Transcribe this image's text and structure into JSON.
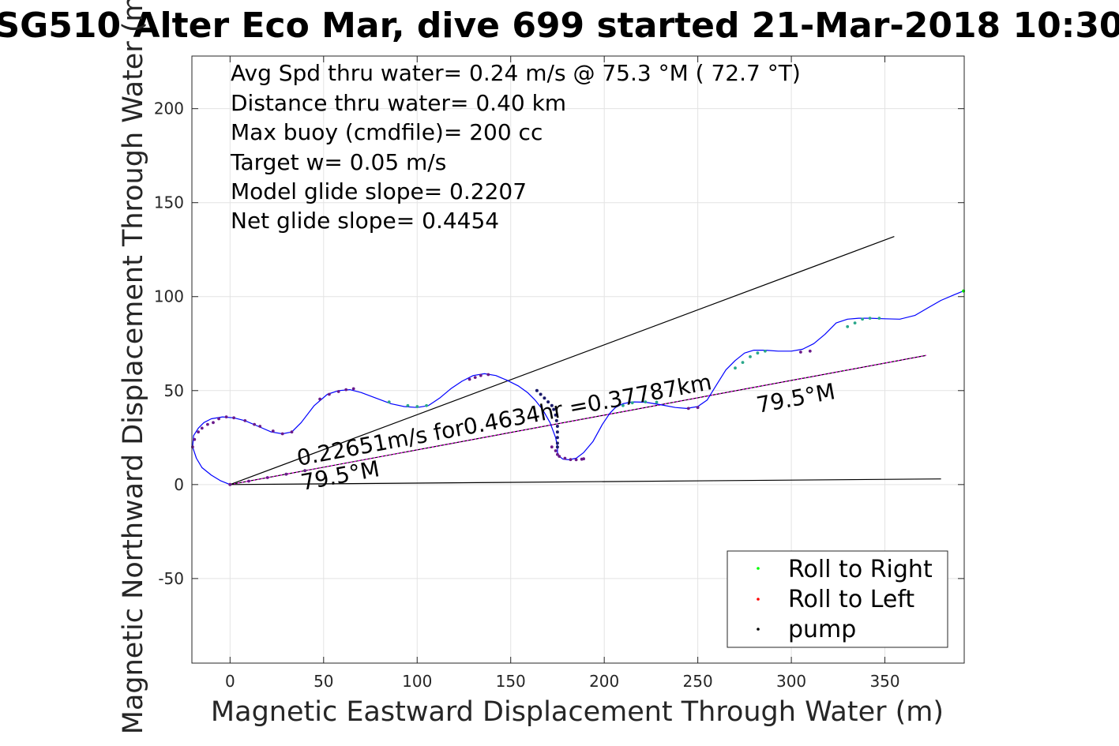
{
  "chart_data": {
    "type": "line",
    "title": "SG510 Alter Eco Mar, dive 699 started 21-Mar-2018 10:30",
    "xlabel": "Magnetic Eastward Displacement Through Water (m)",
    "ylabel": "Magnetic Northward Displacement Through Water (m)",
    "xlim": [
      -20.4,
      392.4
    ],
    "ylim": [
      -95,
      228
    ],
    "xticks": [
      0,
      50,
      100,
      150,
      200,
      250,
      300,
      350
    ],
    "yticks": [
      -50,
      0,
      50,
      100,
      150,
      200
    ],
    "grid": true,
    "legend_position": "bottom-right",
    "stats_text": [
      "Avg Spd thru water=  0.24 m/s @  75.3 °M ( 72.7 °T)",
      "Distance thru water=  0.40 km",
      "Max buoy (cmdfile)= 200 cc",
      "Target w= 0.05 m/s",
      "Model glide slope= 0.2207",
      "Net glide slope= 0.4454"
    ],
    "annotations": {
      "speed": "0.22651m/s for0.4634hr =0.37787km",
      "heading_start": "79.5°M",
      "heading_end": "79.5°M"
    },
    "legend": [
      {
        "label": "Roll to Right",
        "color": "#00ff00"
      },
      {
        "label": "Roll to Left",
        "color": "#ff0000"
      },
      {
        "label": "pump",
        "color": "#000000"
      }
    ],
    "colors": {
      "track": "#0000ff",
      "glide_line": "#ff00ff",
      "reference_lines": "#000000",
      "mixed_marker": "#6a1a8a",
      "right_marker": "#2aa78a",
      "pump_marker": "#1a1a6a"
    },
    "series": [
      {
        "kind": "track",
        "x": [
          0,
          -5,
          -10,
          -15,
          -18,
          -20,
          -19.5,
          -17,
          -14,
          -10,
          -4,
          2,
          8,
          15,
          22,
          28,
          33,
          38,
          45,
          52,
          58,
          64,
          70,
          78,
          86,
          93,
          100,
          106,
          112,
          118,
          124,
          130,
          136,
          142,
          148,
          154,
          159,
          163,
          167,
          171,
          174,
          175,
          175,
          176,
          178,
          181,
          185,
          189,
          194,
          199,
          203,
          206,
          210,
          215,
          222,
          230,
          238,
          244,
          250,
          255,
          260,
          265,
          270,
          275,
          280,
          286,
          293,
          300,
          306,
          312,
          318,
          324,
          330,
          336,
          342,
          350,
          358,
          366,
          373,
          380,
          387,
          392
        ],
        "y": [
          0,
          2,
          5,
          9,
          14,
          20,
          26,
          30,
          33,
          35,
          36,
          35.5,
          34,
          31,
          28,
          27,
          28,
          33,
          42,
          48,
          50,
          50.5,
          49,
          46,
          43,
          41.5,
          41,
          42,
          46,
          51,
          55,
          58,
          59,
          58,
          55.5,
          52.5,
          49,
          45,
          40,
          33,
          25,
          20,
          17,
          15,
          13.5,
          13.2,
          14,
          17,
          23,
          32,
          38,
          41,
          43,
          44,
          43.8,
          42.5,
          41,
          40.5,
          41.5,
          45,
          53,
          61,
          66,
          70,
          71.5,
          71.5,
          71,
          71,
          72,
          75,
          80,
          86,
          88,
          88.5,
          88.5,
          88.2,
          88,
          90,
          94,
          98,
          101,
          103
        ]
      },
      {
        "kind": "glide_line",
        "x": [
          0,
          372
        ],
        "y": [
          0,
          68.7
        ]
      },
      {
        "kind": "reference_upper",
        "x": [
          0,
          355
        ],
        "y": [
          0,
          132
        ]
      },
      {
        "kind": "reference_lower",
        "x": [
          0,
          380
        ],
        "y": [
          0,
          3
        ]
      },
      {
        "kind": "markers_left",
        "x": [
          -20,
          -19,
          -17,
          -15,
          -12,
          -9,
          -6,
          -2,
          2,
          8,
          13,
          16,
          23,
          28,
          33,
          48,
          53,
          58,
          62,
          66,
          128,
          131,
          134,
          138,
          172,
          174,
          175,
          176,
          179,
          182,
          185,
          188,
          189,
          245,
          250,
          305,
          310,
          10,
          20,
          30,
          40
        ],
        "y": [
          20,
          24,
          28,
          30,
          32,
          33,
          35,
          36,
          35.5,
          34,
          32,
          31,
          28.5,
          27,
          28,
          45.5,
          48,
          49.5,
          50.5,
          51,
          56,
          57,
          58,
          58.5,
          20,
          18,
          16,
          15,
          14,
          13.3,
          13.2,
          13.5,
          13.7,
          40.5,
          41,
          70.5,
          71,
          1.8,
          3.7,
          5.5,
          7.4
        ]
      },
      {
        "kind": "markers_right",
        "x": [
          85,
          95,
          100,
          105,
          210,
          215,
          222,
          228,
          270,
          274,
          278,
          282,
          286,
          330,
          334,
          338,
          342,
          347
        ],
        "y": [
          44,
          42,
          41.5,
          42,
          42,
          43.5,
          44,
          43.8,
          62,
          65,
          68,
          70,
          71,
          84,
          86,
          88,
          88.5,
          88.5
        ]
      },
      {
        "kind": "markers_pump",
        "x": [
          164,
          166,
          168,
          170,
          172,
          173,
          174,
          174.5,
          175,
          175,
          175,
          175,
          175
        ],
        "y": [
          50,
          48,
          46,
          44,
          42,
          40,
          37,
          34,
          31,
          28,
          25,
          22,
          20
        ]
      }
    ]
  }
}
